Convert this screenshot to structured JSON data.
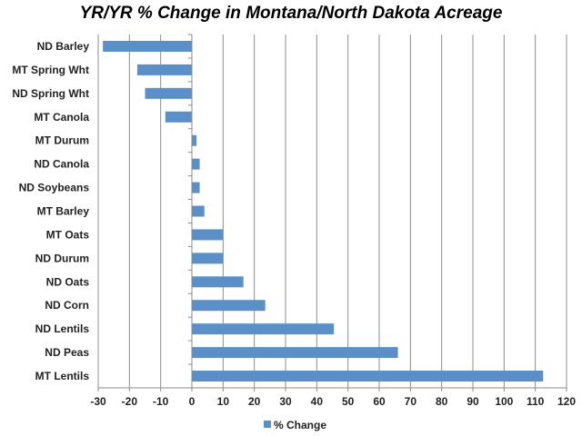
{
  "chart_data": {
    "type": "bar",
    "orientation": "horizontal",
    "title": "YR/YR % Change in Montana/North Dakota Acreage",
    "xlabel": "",
    "ylabel": "",
    "categories": [
      "ND Barley",
      "MT Spring Wht",
      "ND Spring Wht",
      "MT Canola",
      "MT Durum",
      "ND Canola",
      "ND Soybeans",
      "MT Barley",
      "MT Oats",
      "ND Durum",
      "ND Oats",
      "ND Corn",
      "ND Lentils",
      "ND Peas",
      "MT Lentils"
    ],
    "series": [
      {
        "name": "% Change",
        "color": "#5b8fc7",
        "values": [
          -28.5,
          -17.5,
          -15,
          -8.5,
          1.5,
          2.5,
          2.5,
          4,
          10,
          10,
          16.5,
          23.5,
          45.5,
          66,
          112.5
        ]
      }
    ],
    "xlim": [
      -30,
      120
    ],
    "xticks": [
      "-30",
      "-20",
      "-10",
      "0",
      "10",
      "20",
      "30",
      "40",
      "50",
      "60",
      "70",
      "80",
      "90",
      "100",
      "110",
      "120"
    ],
    "grid": "vertical",
    "legend": "bottom-center"
  }
}
